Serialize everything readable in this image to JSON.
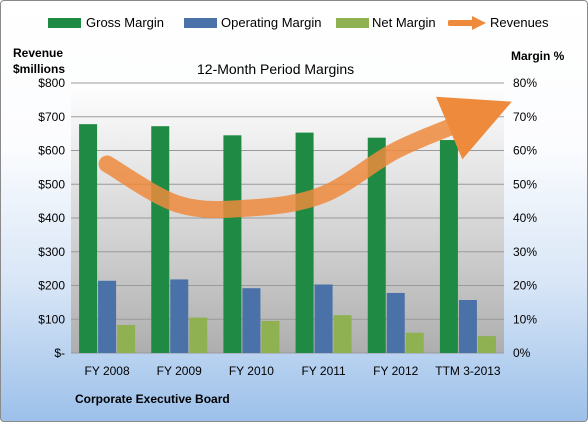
{
  "legend": [
    {
      "label": "Gross Margin",
      "color": "#1e8a43"
    },
    {
      "label": "Operating Margin",
      "color": "#4a72a8"
    },
    {
      "label": "Net Margin",
      "color": "#8fb151"
    },
    {
      "label": "Revenues",
      "color": "#ed8a3c"
    }
  ],
  "company": "Corporate Executive Board",
  "chart_data": {
    "type": "bar",
    "title": "12-Month Period Margins",
    "ylabel": "Revenue\n$millions",
    "ylabel_line1": "Revenue",
    "ylabel_line2": "$millions",
    "y2label": "Margin %",
    "categories": [
      "FY 2008",
      "FY 2009",
      "FY 2010",
      "FY 2011",
      "FY 2012",
      "TTM 3-2013"
    ],
    "ylim": [
      0,
      800
    ],
    "y_ticks": [
      "$-",
      "$100",
      "$200",
      "$300",
      "$400",
      "$500",
      "$600",
      "$700",
      "$800"
    ],
    "y2lim": [
      0,
      80
    ],
    "y2_ticks": [
      "0%",
      "10%",
      "20%",
      "30%",
      "40%",
      "50%",
      "60%",
      "70%",
      "80%"
    ],
    "grid": true,
    "legend_position": "top",
    "series": [
      {
        "name": "Gross Margin",
        "axis": "right",
        "color": "#1e8a43",
        "values": [
          67.8,
          67.2,
          64.5,
          65.3,
          63.8,
          63.1
        ]
      },
      {
        "name": "Operating Margin",
        "axis": "right",
        "color": "#4a72a8",
        "values": [
          21.4,
          21.8,
          19.2,
          20.3,
          17.8,
          15.7
        ]
      },
      {
        "name": "Net Margin",
        "axis": "right",
        "color": "#8fb151",
        "values": [
          8.3,
          10.5,
          9.5,
          11.2,
          6.0,
          5.0
        ]
      },
      {
        "name": "Revenues",
        "axis": "left",
        "type": "line",
        "color": "#ed8a3c",
        "values": [
          560,
          440,
          430,
          470,
          600,
          690
        ]
      }
    ]
  }
}
